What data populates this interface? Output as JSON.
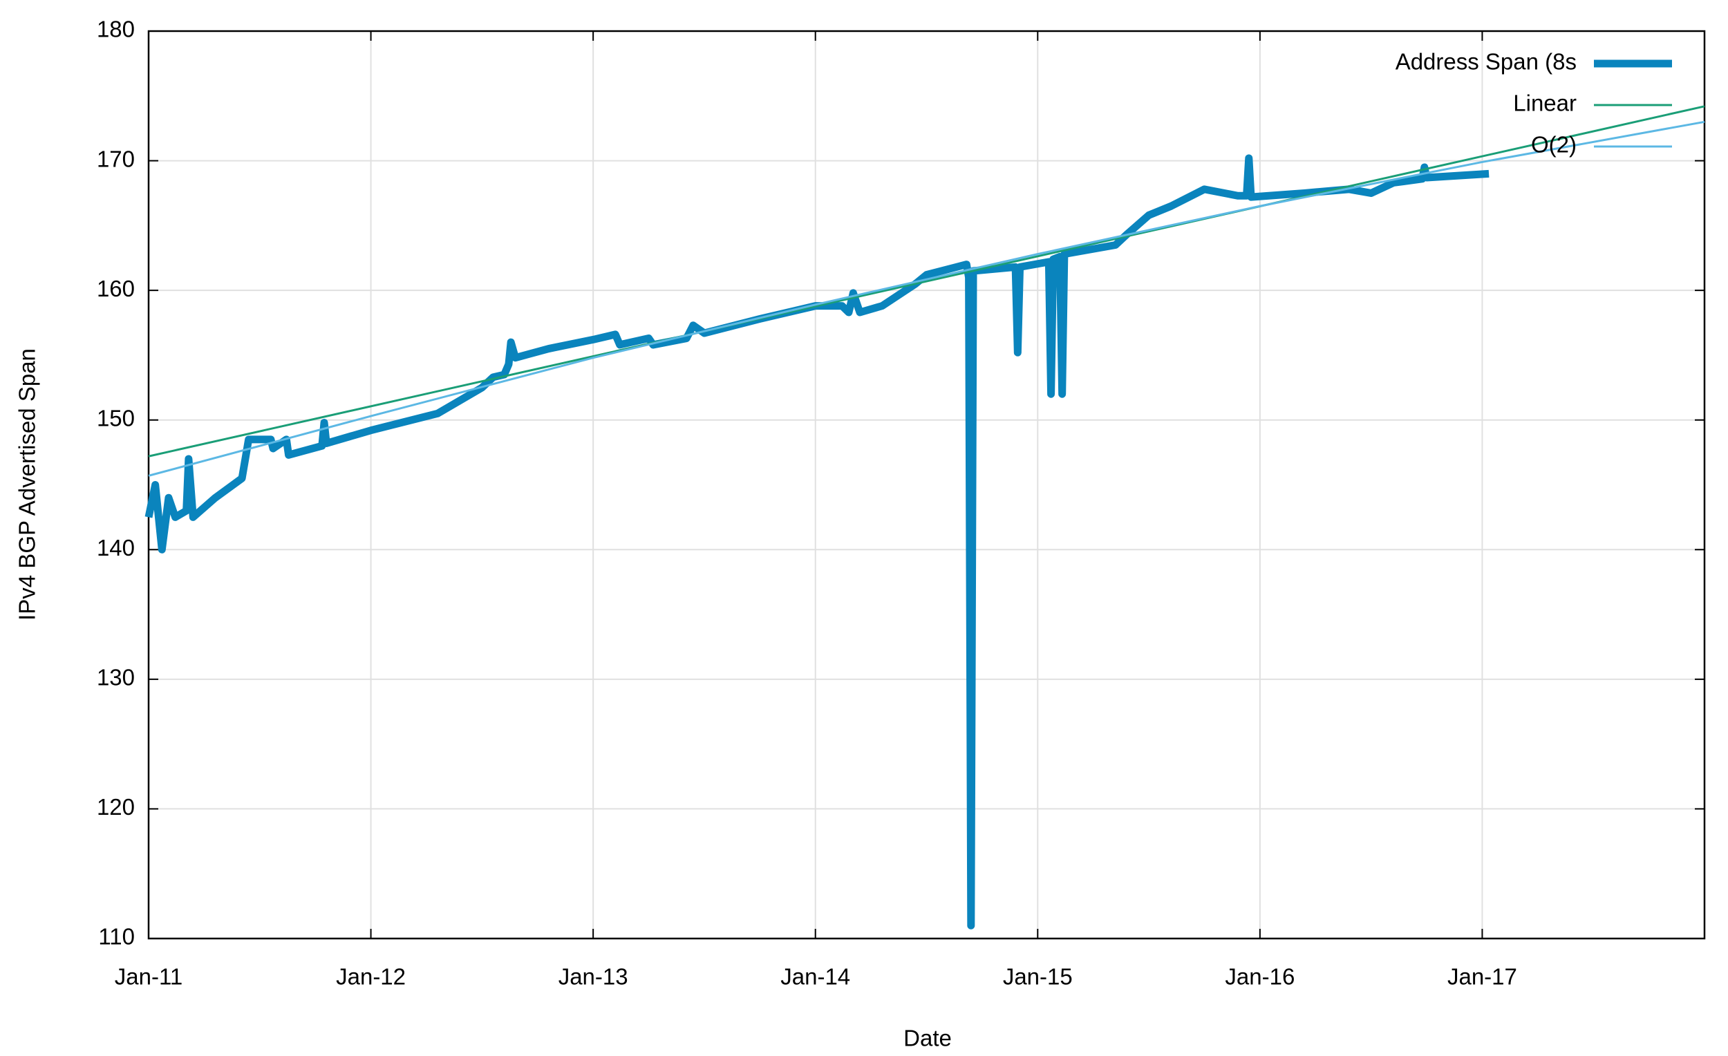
{
  "chart_data": {
    "type": "line",
    "xlabel": "Date",
    "ylabel": "IPv4 BGP Advertised Span",
    "xlim": [
      2011,
      2018
    ],
    "ylim": [
      110,
      180
    ],
    "xticks": [
      {
        "value": 2011,
        "label": "Jan-11"
      },
      {
        "value": 2012,
        "label": "Jan-12"
      },
      {
        "value": 2013,
        "label": "Jan-13"
      },
      {
        "value": 2014,
        "label": "Jan-14"
      },
      {
        "value": 2015,
        "label": "Jan-15"
      },
      {
        "value": 2016,
        "label": "Jan-16"
      },
      {
        "value": 2017,
        "label": "Jan-17"
      }
    ],
    "yticks": [
      110,
      120,
      130,
      140,
      150,
      160,
      170,
      180
    ],
    "grid": true,
    "legend": "top-right",
    "series": [
      {
        "name": "Address Span (8s",
        "color": "#0a84bd",
        "width": "thick",
        "x": [
          2011.0,
          2011.03,
          2011.06,
          2011.09,
          2011.12,
          2011.17,
          2011.18,
          2011.2,
          2011.3,
          2011.42,
          2011.45,
          2011.55,
          2011.56,
          2011.62,
          2011.63,
          2011.78,
          2011.79,
          2011.8,
          2012.0,
          2012.3,
          2012.5,
          2012.55,
          2012.6,
          2012.62,
          2012.63,
          2012.65,
          2012.8,
          2013.0,
          2013.1,
          2013.12,
          2013.25,
          2013.27,
          2013.42,
          2013.45,
          2013.5,
          2013.75,
          2014.0,
          2014.12,
          2014.15,
          2014.17,
          2014.2,
          2014.3,
          2014.45,
          2014.5,
          2014.68,
          2014.69,
          2014.7,
          2014.71,
          2014.9,
          2014.91,
          2014.92,
          2015.05,
          2015.06,
          2015.07,
          2015.1,
          2015.11,
          2015.12,
          2015.35,
          2015.4,
          2015.5,
          2015.6,
          2015.75,
          2015.9,
          2015.94,
          2015.95,
          2015.96,
          2016.2,
          2016.4,
          2016.5,
          2016.6,
          2016.73,
          2016.74,
          2016.75,
          2017.03
        ],
        "values": [
          142.5,
          145,
          140,
          144,
          142.5,
          143,
          147,
          142.5,
          144,
          145.5,
          148.5,
          148.5,
          147.8,
          148.5,
          147.3,
          148,
          149.8,
          148.2,
          149.2,
          150.5,
          152.5,
          153.3,
          153.5,
          154.3,
          156,
          154.8,
          155.5,
          156.2,
          156.6,
          155.8,
          156.3,
          155.8,
          156.3,
          157.3,
          156.7,
          157.8,
          158.8,
          158.8,
          158.3,
          159.8,
          158.3,
          158.8,
          160.5,
          161.2,
          162,
          161,
          111,
          161.5,
          161.8,
          155.2,
          161.8,
          162.2,
          152,
          162.4,
          162.6,
          152,
          162.8,
          163.5,
          164.3,
          165.8,
          166.5,
          167.8,
          167.3,
          167.3,
          170.2,
          167.2,
          167.5,
          167.8,
          167.5,
          168.3,
          168.6,
          169.5,
          168.7,
          169
        ]
      },
      {
        "name": "Linear",
        "color": "#1a9e77",
        "width": "thin",
        "x": [
          2011,
          2018
        ],
        "values": [
          147.2,
          174.2
        ]
      },
      {
        "name": "O(2)",
        "color": "#5cb8e4",
        "width": "thin",
        "x": [
          2011,
          2012,
          2013,
          2014,
          2015,
          2016,
          2017,
          2018
        ],
        "values": [
          145.7,
          150.3,
          154.8,
          158.9,
          162.8,
          166.5,
          169.9,
          173
        ]
      }
    ]
  }
}
